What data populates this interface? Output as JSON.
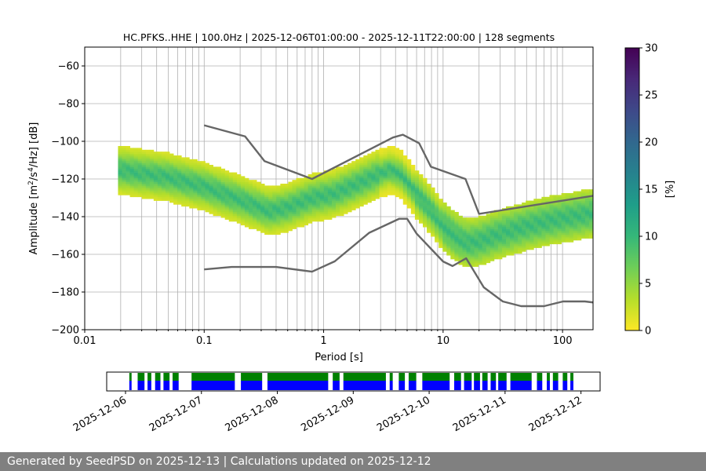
{
  "chart_data": [
    {
      "type": "heatmap",
      "title": "HC.PFKS..HHE | 100.0Hz | 2025-12-06T01:00:00 - 2025-12-11T22:00:00 | 128 segments",
      "xlabel": "Period [s]",
      "ylabel_parts": {
        "base": "Amplitude [m",
        "sup1": "2",
        "mid": "/s",
        "sup2": "4",
        "tail": "/Hz] [dB]"
      },
      "xscale": "log",
      "xlim": [
        0.01,
        180
      ],
      "ylim": [
        -200,
        -50
      ],
      "x_ticks": [
        0.01,
        0.1,
        1,
        10,
        100
      ],
      "x_tick_labels": [
        "0.01",
        "0.1",
        "1",
        "10",
        "100"
      ],
      "y_ticks": [
        -200,
        -180,
        -160,
        -140,
        -120,
        -100,
        -80,
        -60
      ],
      "y_tick_labels": [
        "−200",
        "−180",
        "−160",
        "−140",
        "−120",
        "−100",
        "−80",
        "−60"
      ],
      "grid": true,
      "density_band": {
        "period_range": [
          0.019,
          180
        ],
        "mode_curve": {
          "period": [
            0.019,
            0.03,
            0.05,
            0.1,
            0.2,
            0.35,
            0.5,
            0.8,
            1.2,
            2,
            3,
            3.6,
            4.5,
            6,
            8,
            10,
            13,
            16,
            20,
            30,
            50,
            80,
            120,
            180
          ],
          "db": [
            -115,
            -117,
            -119,
            -124,
            -131,
            -137,
            -135,
            -130,
            -128,
            -122,
            -117,
            -115,
            -118,
            -128,
            -137,
            -145,
            -151,
            -154,
            -153,
            -149,
            -145,
            -142,
            -140,
            -138
          ]
        },
        "colorbar": {
          "label": "[%]",
          "min": 0,
          "max": 30,
          "ticks": [
            0,
            5,
            10,
            15,
            20,
            25,
            30
          ],
          "colors": [
            "#fde725",
            "#b5de2b",
            "#6ece58",
            "#35b779",
            "#1f9e89",
            "#26828e",
            "#31688e",
            "#3e4989",
            "#482878",
            "#440154"
          ]
        }
      },
      "noise_models": [
        {
          "name": "high-noise-model",
          "period": [
            0.1,
            0.22,
            0.32,
            0.8,
            3.8,
            4.6,
            6.3,
            7.9,
            15.4,
            20,
            354
          ],
          "db": [
            -91.5,
            -97.4,
            -110.5,
            -120,
            -98,
            -96.5,
            -101,
            -113.5,
            -120,
            -138.5,
            -126
          ]
        },
        {
          "name": "low-noise-model",
          "period": [
            0.1,
            0.17,
            0.4,
            0.8,
            1.24,
            2.4,
            4.3,
            5,
            6,
            10,
            12,
            15.6,
            21.9,
            31.6,
            45,
            70,
            101,
            154,
            328
          ],
          "db": [
            -168,
            -166.7,
            -166.7,
            -169.2,
            -163.7,
            -148.6,
            -141.1,
            -141.1,
            -149,
            -163.8,
            -166.2,
            -162.1,
            -177.5,
            -185,
            -187.5,
            -187.5,
            -185,
            -185,
            -187.5
          ]
        }
      ],
      "noise_model_color": "#666666"
    },
    {
      "type": "timeline",
      "x_tick_labels": [
        "2025-12-06",
        "2025-12-07",
        "2025-12-08",
        "2025-12-09",
        "2025-12-10",
        "2025-12-11",
        "2025-12-12"
      ],
      "x_range_days": [
        0,
        6.5
      ],
      "start_date": "2025-12-06",
      "tick_days": [
        0,
        1,
        2,
        3,
        4,
        5,
        6
      ],
      "colors": {
        "data": "#0000ff",
        "used": "#008000"
      },
      "segments_days": [
        [
          0.05,
          0.08
        ],
        [
          0.16,
          0.25
        ],
        [
          0.29,
          0.34
        ],
        [
          0.39,
          0.46
        ],
        [
          0.5,
          0.58
        ],
        [
          0.62,
          0.7
        ],
        [
          0.87,
          1.44
        ],
        [
          1.52,
          1.8
        ],
        [
          1.87,
          2.67
        ],
        [
          2.73,
          2.82
        ],
        [
          2.87,
          3.43
        ],
        [
          3.48,
          3.52
        ],
        [
          3.6,
          3.68
        ],
        [
          3.73,
          3.83
        ],
        [
          3.91,
          4.27
        ],
        [
          4.33,
          4.42
        ],
        [
          4.46,
          4.56
        ],
        [
          4.59,
          4.67
        ],
        [
          4.7,
          4.77
        ],
        [
          4.81,
          4.88
        ],
        [
          4.91,
          5.02
        ],
        [
          5.07,
          5.35
        ],
        [
          5.42,
          5.49
        ],
        [
          5.55,
          5.59
        ],
        [
          5.63,
          5.7
        ],
        [
          5.76,
          5.82
        ],
        [
          5.86,
          5.9
        ]
      ]
    }
  ],
  "footer": {
    "text": "Generated by SeedPSD on 2025-12-13 | Calculations updated on 2025-12-12"
  }
}
